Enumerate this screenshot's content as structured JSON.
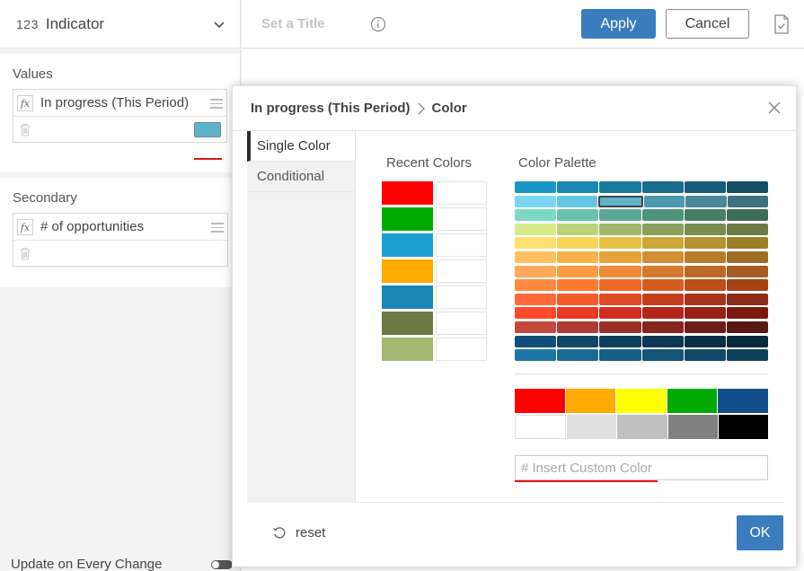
{
  "visualization": {
    "type_code": "123",
    "type_name": "Indicator"
  },
  "sections": {
    "values": {
      "title": "Values",
      "field_label": "In progress (This Period)",
      "swatch_color": "#5fb3c9"
    },
    "secondary": {
      "title": "Secondary",
      "field_label": "# of opportunities"
    }
  },
  "update_toggle_label": "Update on Every Change",
  "header": {
    "title_placeholder": "Set a Title",
    "apply_label": "Apply",
    "cancel_label": "Cancel"
  },
  "dialog": {
    "breadcrumb_parent": "In progress (This Period)",
    "breadcrumb_current": "Color",
    "tabs": [
      {
        "label": "Single Color",
        "active": true
      },
      {
        "label": "Conditional",
        "active": false
      }
    ],
    "recent_title": "Recent Colors",
    "recent_colors": [
      "#ff0000",
      "#00aa00",
      "#1a9fd0",
      "#ffaa00",
      "#1a87b4",
      "#6b7a45",
      "#a3b870"
    ],
    "palette_title": "Color Palette",
    "palette_rows": [
      [
        "#1a97c6",
        "#1a87b4",
        "#1a7ba0",
        "#196d8c",
        "#175d78",
        "#154f63"
      ],
      [
        "#7ed6f2",
        "#64c6e4",
        "#5fb3c9",
        "#4f98ad",
        "#4a8797",
        "#3e7180"
      ],
      [
        "#7ed8c6",
        "#6ac2ae",
        "#5aa893",
        "#4e937c",
        "#487d68",
        "#3d6b59"
      ],
      [
        "#d8eb8a",
        "#bcd37a",
        "#a0b86a",
        "#8aa05c",
        "#7a8c4f",
        "#6b7a45"
      ],
      [
        "#ffdf70",
        "#f7d45a",
        "#e6c144",
        "#caa83a",
        "#b39430",
        "#9c8028"
      ],
      [
        "#ffc060",
        "#f8b24a",
        "#e8a23c",
        "#d08f34",
        "#b87d2c",
        "#a06d26"
      ],
      [
        "#ffa85a",
        "#ff9a45",
        "#ee8a38",
        "#d47a30",
        "#bc6a28",
        "#a45c22"
      ],
      [
        "#ff8a40",
        "#ff7a2e",
        "#ee6a24",
        "#d45c1e",
        "#bc4e18",
        "#a44214"
      ],
      [
        "#ff6a3a",
        "#f45a2c",
        "#e04a24",
        "#c43e1e",
        "#a8341a",
        "#8c2a16"
      ],
      [
        "#ff4a2e",
        "#e83a24",
        "#d02e1e",
        "#b4261a",
        "#982016",
        "#7c1a12"
      ],
      [
        "#c44a3e",
        "#ae3c32",
        "#983028",
        "#82261e",
        "#6c1e18",
        "#561812"
      ],
      [
        "#134e78",
        "#114669",
        "#0f3f5d",
        "#0d3752",
        "#0b3046",
        "#0a293c"
      ],
      [
        "#1b76a6",
        "#186b96",
        "#165f86",
        "#135577",
        "#114a68",
        "#0f405a"
      ]
    ],
    "basic_rows": [
      [
        "#ff0000",
        "#ffaa00",
        "#ffff00",
        "#00aa00",
        "#134e8a"
      ],
      [
        "#ffffff",
        "#e0e0e0",
        "#c0c0c0",
        "#808080",
        "#000000"
      ]
    ],
    "custom_placeholder": "# Insert Custom Color",
    "reset_label": "reset",
    "ok_label": "OK"
  }
}
